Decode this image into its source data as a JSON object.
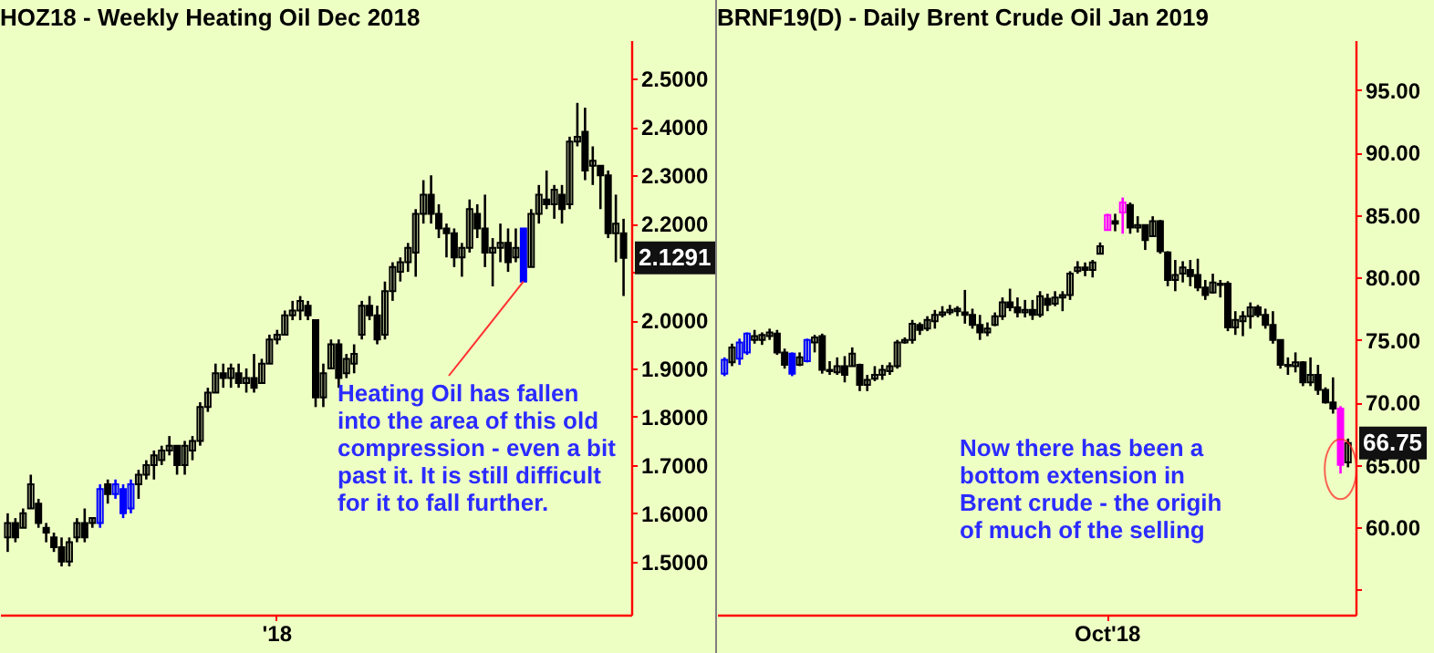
{
  "chart_data": [
    {
      "type": "candlestick",
      "title": "HOZ18 - Weekly  Heating Oil Dec 2018",
      "categories": [
        null,
        null,
        null,
        null,
        null,
        null,
        null,
        null,
        null,
        null,
        null,
        null,
        null,
        null,
        null,
        null,
        null,
        null,
        null,
        null,
        null,
        null,
        null,
        null,
        null,
        null,
        null,
        null,
        null,
        null,
        null,
        null,
        null,
        null,
        null,
        "'18",
        null,
        null,
        null,
        null,
        null,
        null,
        null,
        null,
        null,
        null,
        null,
        null,
        null,
        null,
        null,
        null,
        null,
        null,
        null,
        null,
        null,
        null,
        null,
        null,
        null,
        null,
        null,
        null,
        null,
        null,
        null,
        null,
        null,
        null,
        null,
        null,
        null,
        null,
        null,
        null,
        null,
        null,
        null,
        null,
        null
      ],
      "ohlc": [
        [
          1.55,
          1.6,
          1.52,
          1.58
        ],
        [
          1.58,
          1.59,
          1.54,
          1.55
        ],
        [
          1.57,
          1.61,
          1.57,
          1.6
        ],
        [
          1.61,
          1.68,
          1.61,
          1.66
        ],
        [
          1.62,
          1.63,
          1.57,
          1.58
        ],
        [
          1.57,
          1.58,
          1.54,
          1.56
        ],
        [
          1.55,
          1.56,
          1.52,
          1.53
        ],
        [
          1.53,
          1.55,
          1.49,
          1.5
        ],
        [
          1.5,
          1.55,
          1.49,
          1.54
        ],
        [
          1.55,
          1.59,
          1.54,
          1.58
        ],
        [
          1.58,
          1.61,
          1.54,
          1.55
        ],
        [
          1.58,
          1.59,
          1.57,
          1.59
        ],
        [
          1.58,
          1.66,
          1.57,
          1.65
        ],
        [
          1.66,
          1.67,
          1.62,
          1.64
        ],
        [
          1.64,
          1.67,
          1.63,
          1.66
        ],
        [
          1.65,
          1.66,
          1.59,
          1.6
        ],
        [
          1.61,
          1.67,
          1.6,
          1.66
        ],
        [
          1.66,
          1.69,
          1.63,
          1.68
        ],
        [
          1.68,
          1.71,
          1.67,
          1.7
        ],
        [
          1.7,
          1.73,
          1.67,
          1.72
        ],
        [
          1.71,
          1.74,
          1.7,
          1.73
        ],
        [
          1.73,
          1.76,
          1.72,
          1.74
        ],
        [
          1.74,
          1.74,
          1.68,
          1.7
        ],
        [
          1.7,
          1.75,
          1.68,
          1.74
        ],
        [
          1.73,
          1.76,
          1.71,
          1.75
        ],
        [
          1.75,
          1.83,
          1.74,
          1.82
        ],
        [
          1.82,
          1.86,
          1.81,
          1.85
        ],
        [
          1.85,
          1.91,
          1.85,
          1.89
        ],
        [
          1.89,
          1.91,
          1.86,
          1.88
        ],
        [
          1.88,
          1.91,
          1.86,
          1.9
        ],
        [
          1.89,
          1.91,
          1.86,
          1.87
        ],
        [
          1.87,
          1.9,
          1.85,
          1.88
        ],
        [
          1.88,
          1.93,
          1.85,
          1.86
        ],
        [
          1.87,
          1.92,
          1.87,
          1.91
        ],
        [
          1.91,
          1.97,
          1.91,
          1.96
        ],
        [
          1.96,
          1.98,
          1.95,
          1.97
        ],
        [
          1.97,
          2.02,
          1.97,
          2.01
        ],
        [
          2.01,
          2.04,
          2.0,
          2.02
        ],
        [
          2.02,
          2.05,
          2.0,
          2.04
        ],
        [
          2.03,
          2.04,
          2.0,
          2.01
        ],
        [
          2.0,
          2.0,
          1.82,
          1.84
        ],
        [
          1.84,
          1.91,
          1.82,
          1.89
        ],
        [
          1.9,
          1.96,
          1.9,
          1.95
        ],
        [
          1.95,
          1.96,
          1.86,
          1.88
        ],
        [
          1.89,
          1.93,
          1.88,
          1.92
        ],
        [
          1.91,
          1.95,
          1.89,
          1.93
        ],
        [
          1.97,
          2.04,
          1.96,
          2.03
        ],
        [
          2.03,
          2.05,
          2.0,
          2.01
        ],
        [
          2.01,
          2.03,
          1.95,
          1.96
        ],
        [
          1.97,
          2.08,
          1.96,
          2.06
        ],
        [
          2.06,
          2.12,
          2.04,
          2.11
        ],
        [
          2.1,
          2.13,
          2.08,
          2.12
        ],
        [
          2.12,
          2.16,
          2.1,
          2.15
        ],
        [
          2.14,
          2.23,
          2.09,
          2.22
        ],
        [
          2.22,
          2.29,
          2.2,
          2.26
        ],
        [
          2.26,
          2.3,
          2.2,
          2.22
        ],
        [
          2.22,
          2.24,
          2.17,
          2.19
        ],
        [
          2.19,
          2.2,
          2.13,
          2.18
        ],
        [
          2.18,
          2.19,
          2.11,
          2.13
        ],
        [
          2.13,
          2.16,
          2.09,
          2.15
        ],
        [
          2.15,
          2.25,
          2.14,
          2.23
        ],
        [
          2.22,
          2.24,
          2.17,
          2.19
        ],
        [
          2.19,
          2.26,
          2.11,
          2.14
        ],
        [
          2.14,
          2.17,
          2.07,
          2.15
        ],
        [
          2.15,
          2.2,
          2.12,
          2.16
        ],
        [
          2.16,
          2.19,
          2.1,
          2.12
        ],
        [
          2.13,
          2.19,
          2.12,
          2.15
        ],
        [
          2.19,
          2.19,
          2.08,
          2.08
        ],
        [
          2.11,
          2.23,
          2.11,
          2.22
        ],
        [
          2.22,
          2.28,
          2.2,
          2.26
        ],
        [
          2.25,
          2.31,
          2.23,
          2.24
        ],
        [
          2.24,
          2.28,
          2.21,
          2.27
        ],
        [
          2.26,
          2.28,
          2.2,
          2.23
        ],
        [
          2.24,
          2.38,
          2.23,
          2.37
        ],
        [
          2.37,
          2.45,
          2.36,
          2.38
        ],
        [
          2.39,
          2.44,
          2.29,
          2.31
        ],
        [
          2.32,
          2.36,
          2.28,
          2.33
        ],
        [
          2.32,
          2.32,
          2.23,
          2.3
        ],
        [
          2.3,
          2.31,
          2.17,
          2.18
        ],
        [
          2.18,
          2.26,
          2.12,
          2.2
        ],
        [
          2.18,
          2.21,
          2.05,
          2.1291
        ]
      ],
      "colors": [
        "#000000",
        "#000000",
        "#000000",
        "#000000",
        "#000000",
        "#000000",
        "#000000",
        "#000000",
        "#000000",
        "#000000",
        "#000000",
        "#000000",
        "#0000ff",
        "#000000",
        "#0000ff",
        "#0000ff",
        "#0000ff",
        "#000000",
        "#000000",
        "#000000",
        "#000000",
        "#000000",
        "#000000",
        "#000000",
        "#000000",
        "#000000",
        "#000000",
        "#000000",
        "#000000",
        "#000000",
        "#000000",
        "#000000",
        "#000000",
        "#000000",
        "#000000",
        "#000000",
        "#000000",
        "#000000",
        "#000000",
        "#000000",
        "#000000",
        "#000000",
        "#000000",
        "#000000",
        "#000000",
        "#000000",
        "#000000",
        "#000000",
        "#000000",
        "#000000",
        "#000000",
        "#000000",
        "#000000",
        "#000000",
        "#000000",
        "#000000",
        "#000000",
        "#000000",
        "#000000",
        "#000000",
        "#000000",
        "#000000",
        "#000000",
        "#000000",
        "#000000",
        "#000000",
        "#000000",
        "#0000ff",
        "#000000",
        "#000000",
        "#000000",
        "#000000",
        "#000000",
        "#000000",
        "#000000",
        "#000000",
        "#000000",
        "#000000",
        "#000000",
        "#000000",
        "#000000"
      ],
      "ylim": [
        1.39,
        2.58
      ],
      "yticks": [
        {
          "value": 1.5,
          "label": "1.5000"
        },
        {
          "value": 1.6,
          "label": "1.6000"
        },
        {
          "value": 1.7,
          "label": "1.7000"
        },
        {
          "value": 1.8,
          "label": "1.8000"
        },
        {
          "value": 1.9,
          "label": "1.9000"
        },
        {
          "value": 2.0,
          "label": "2.0000"
        },
        {
          "value": 2.1,
          "label": null
        },
        {
          "value": 2.2,
          "label": "2.2000"
        },
        {
          "value": 2.3,
          "label": "2.3000"
        },
        {
          "value": 2.4,
          "label": "2.4000"
        },
        {
          "value": 2.5,
          "label": "2.5000"
        }
      ],
      "annotations": [
        "Heating Oil has fallen\ninto the area of this old\ncompression - even a bit\npast it. It is still difficult\nfor it to fall further.",
        {
          "text": "2.1291",
          "y": 2.1291
        }
      ]
    },
    {
      "type": "candlestick",
      "title": "BRNF19(D) - Daily  Brent Crude Oil Jan 2019",
      "categories": [
        null,
        null,
        null,
        null,
        null,
        null,
        null,
        null,
        null,
        null,
        null,
        null,
        null,
        null,
        null,
        null,
        null,
        null,
        null,
        null,
        null,
        null,
        null,
        null,
        null,
        null,
        null,
        null,
        null,
        null,
        null,
        null,
        null,
        null,
        null,
        null,
        null,
        null,
        null,
        null,
        null,
        null,
        null,
        null,
        null,
        null,
        null,
        null,
        null,
        null,
        null,
        "Oct'18",
        null,
        null,
        null,
        null,
        null,
        null,
        null,
        null,
        null,
        null,
        null,
        null,
        null,
        null,
        null,
        null,
        null,
        null,
        null,
        null,
        null,
        null,
        null,
        null,
        null,
        null,
        null,
        null,
        null,
        null,
        null,
        null
      ],
      "ohlc": [
        [
          72.3,
          73.6,
          72.1,
          73.4
        ],
        [
          73.2,
          74.7,
          72.9,
          74.4
        ],
        [
          73.5,
          75.1,
          73.0,
          74.8
        ],
        [
          74.0,
          75.6,
          73.8,
          75.5
        ],
        [
          75.0,
          75.8,
          74.7,
          75.3
        ],
        [
          75.0,
          75.6,
          74.6,
          75.4
        ],
        [
          75.3,
          75.9,
          75.0,
          75.6
        ],
        [
          75.5,
          75.8,
          73.8,
          74.0
        ],
        [
          74.0,
          74.3,
          72.7,
          73.0
        ],
        [
          73.9,
          74.0,
          72.1,
          72.3
        ],
        [
          73.0,
          74.0,
          72.9,
          73.6
        ],
        [
          73.3,
          75.1,
          73.2,
          75.0
        ],
        [
          74.8,
          75.4,
          74.0,
          75.2
        ],
        [
          75.3,
          75.5,
          72.3,
          72.6
        ],
        [
          72.6,
          73.3,
          72.2,
          72.5
        ],
        [
          72.4,
          73.6,
          72.2,
          72.9
        ],
        [
          72.9,
          73.7,
          71.6,
          72.2
        ],
        [
          72.9,
          74.4,
          72.9,
          73.9
        ],
        [
          73.0,
          73.1,
          70.9,
          71.4
        ],
        [
          71.4,
          72.2,
          70.9,
          71.8
        ],
        [
          71.9,
          72.9,
          71.7,
          72.2
        ],
        [
          72.2,
          73.0,
          71.8,
          72.6
        ],
        [
          72.5,
          73.2,
          72.2,
          72.9
        ],
        [
          72.9,
          75.0,
          72.7,
          74.8
        ],
        [
          74.8,
          75.2,
          74.7,
          75.0
        ],
        [
          75.0,
          76.6,
          74.7,
          76.3
        ],
        [
          76.2,
          76.4,
          75.4,
          75.8
        ],
        [
          75.9,
          76.9,
          75.7,
          76.6
        ],
        [
          76.5,
          77.4,
          75.9,
          77.0
        ],
        [
          77.0,
          77.7,
          76.8,
          77.2
        ],
        [
          77.2,
          77.8,
          77.0,
          77.4
        ],
        [
          77.3,
          77.7,
          76.9,
          77.5
        ],
        [
          77.2,
          79.0,
          76.3,
          77.0
        ],
        [
          77.0,
          77.5,
          75.9,
          76.2
        ],
        [
          76.2,
          77.0,
          75.0,
          75.6
        ],
        [
          75.6,
          76.4,
          75.3,
          75.9
        ],
        [
          76.2,
          77.2,
          76.1,
          76.9
        ],
        [
          76.9,
          78.4,
          76.6,
          78.0
        ],
        [
          78.0,
          79.1,
          77.3,
          77.6
        ],
        [
          77.6,
          78.4,
          76.8,
          77.2
        ],
        [
          77.2,
          78.2,
          76.8,
          77.4
        ],
        [
          77.4,
          78.2,
          76.6,
          77.0
        ],
        [
          77.0,
          78.9,
          76.8,
          78.5
        ],
        [
          78.3,
          78.7,
          77.3,
          77.8
        ],
        [
          77.9,
          78.9,
          77.7,
          78.4
        ],
        [
          78.4,
          78.9,
          77.3,
          78.6
        ],
        [
          78.6,
          80.5,
          78.2,
          80.3
        ],
        [
          80.5,
          81.3,
          80.3,
          80.8
        ],
        [
          80.8,
          81.2,
          80.1,
          80.6
        ],
        [
          80.6,
          81.4,
          80.0,
          81.2
        ],
        [
          81.9,
          82.8,
          81.9,
          82.5
        ],
        [
          83.8,
          85.1,
          83.8,
          85.0
        ],
        [
          84.5,
          85.1,
          83.7,
          84.3
        ],
        [
          85.2,
          86.4,
          83.5,
          86.0
        ],
        [
          85.8,
          86.0,
          83.5,
          84.0
        ],
        [
          84.0,
          84.9,
          83.6,
          84.2
        ],
        [
          84.2,
          84.2,
          82.2,
          83.0
        ],
        [
          83.3,
          84.9,
          83.3,
          84.5
        ],
        [
          84.5,
          84.6,
          81.9,
          82.1
        ],
        [
          82.0,
          82.1,
          79.3,
          79.8
        ],
        [
          79.8,
          81.4,
          78.9,
          80.2
        ],
        [
          80.3,
          81.3,
          79.6,
          80.8
        ],
        [
          80.6,
          81.4,
          79.3,
          80.1
        ],
        [
          80.2,
          81.5,
          78.9,
          79.2
        ],
        [
          79.2,
          79.8,
          78.2,
          78.6
        ],
        [
          78.8,
          80.3,
          78.7,
          79.6
        ],
        [
          79.4,
          79.8,
          78.4,
          79.5
        ],
        [
          79.5,
          79.7,
          75.7,
          76.0
        ],
        [
          76.0,
          77.3,
          75.4,
          76.6
        ],
        [
          76.5,
          77.3,
          75.3,
          76.9
        ],
        [
          76.9,
          78.0,
          75.9,
          77.6
        ],
        [
          77.6,
          77.8,
          76.8,
          77.0
        ],
        [
          77.0,
          77.5,
          75.9,
          76.2
        ],
        [
          76.2,
          77.3,
          74.7,
          75.0
        ],
        [
          75.0,
          75.0,
          72.7,
          73.0
        ],
        [
          73.0,
          73.6,
          72.2,
          72.9
        ],
        [
          72.9,
          74.0,
          72.4,
          73.2
        ],
        [
          73.2,
          73.3,
          71.3,
          71.6
        ],
        [
          71.6,
          73.6,
          71.3,
          72.2
        ],
        [
          72.2,
          73.0,
          70.6,
          71.0
        ],
        [
          71.0,
          71.2,
          69.9,
          70.0
        ],
        [
          70.0,
          72.0,
          69.1,
          69.5
        ],
        [
          69.5,
          69.7,
          64.3,
          65.0
        ],
        [
          65.2,
          67.1,
          64.8,
          66.75
        ]
      ],
      "colors": [
        "#0000ff",
        "#000000",
        "#0000ff",
        "#0000ff",
        "#000000",
        "#000000",
        "#000000",
        "#000000",
        "#000000",
        "#0000ff",
        "#000000",
        "#0000ff",
        "#000000",
        "#000000",
        "#000000",
        "#000000",
        "#000000",
        "#000000",
        "#000000",
        "#000000",
        "#000000",
        "#000000",
        "#000000",
        "#000000",
        "#000000",
        "#000000",
        "#000000",
        "#000000",
        "#000000",
        "#000000",
        "#000000",
        "#000000",
        "#000000",
        "#000000",
        "#000000",
        "#000000",
        "#000000",
        "#000000",
        "#000000",
        "#000000",
        "#000000",
        "#000000",
        "#000000",
        "#000000",
        "#000000",
        "#000000",
        "#000000",
        "#000000",
        "#000000",
        "#000000",
        "#000000",
        "#ff00ff",
        "#000000",
        "#ff00ff",
        "#000000",
        "#000000",
        "#000000",
        "#000000",
        "#000000",
        "#000000",
        "#000000",
        "#000000",
        "#000000",
        "#000000",
        "#000000",
        "#000000",
        "#000000",
        "#000000",
        "#000000",
        "#000000",
        "#000000",
        "#000000",
        "#000000",
        "#000000",
        "#000000",
        "#000000",
        "#000000",
        "#000000",
        "#000000",
        "#000000",
        "#000000",
        "#000000",
        "#ff00ff",
        "#000000"
      ],
      "ylim": [
        53,
        99
      ],
      "yticks": [
        {
          "value": 55,
          "label": null
        },
        {
          "value": 60,
          "label": "60.00"
        },
        {
          "value": 65,
          "label": "65.00"
        },
        {
          "value": 70,
          "label": "70.00"
        },
        {
          "value": 75,
          "label": "75.00"
        },
        {
          "value": 80,
          "label": "80.00"
        },
        {
          "value": 85,
          "label": "85.00"
        },
        {
          "value": 90,
          "label": "90.00"
        },
        {
          "value": 95,
          "label": "95.00"
        }
      ],
      "annotations": [
        "Now there has been a\nbottom extension in\nBrent crude - the origih\nof much of the selling",
        "66.75"
      ]
    }
  ]
}
